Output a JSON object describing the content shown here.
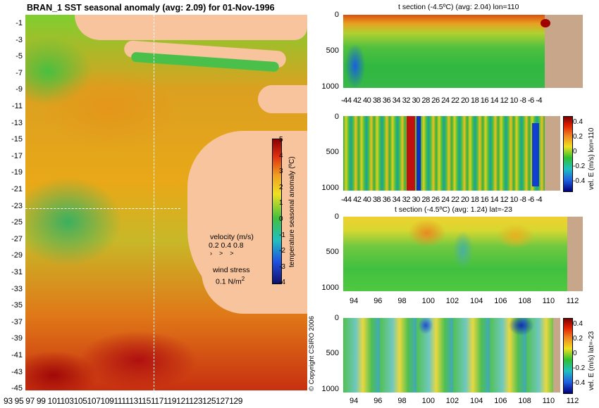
{
  "main_title": "BRAN_1 SST seasonal anomaly (avg: 2.09) for 01-Nov-1996",
  "map": {
    "lat_ticks": [
      "-1",
      "-3",
      "-5",
      "-7",
      "-9",
      "-11",
      "-13",
      "-15",
      "-17",
      "-19",
      "-21",
      "-23",
      "-25",
      "-27",
      "-29",
      "-31",
      "-33",
      "-35",
      "-37",
      "-39",
      "-41",
      "-43",
      "-45"
    ],
    "lon_ticks": [
      "93",
      "95",
      "97",
      "99",
      "101",
      "103",
      "105",
      "107",
      "109",
      "111",
      "113",
      "115",
      "117",
      "119",
      "121",
      "123",
      "125",
      "127",
      "129"
    ],
    "lon_tick_line": "93 95 97 99 101103105107109111113115117119121123125127129",
    "colorbar_ticks": [
      "5",
      "4",
      "3",
      "2",
      "1",
      "0",
      "-1",
      "-2",
      "-3",
      "-4"
    ],
    "colorbar_label": "temperature seasonal anomaly (ºC)",
    "velocity_title": "velocity (m/s)",
    "velocity_scale": "0.2 0.4 0.8",
    "wind_title": "wind stress",
    "wind_scale": "0.1 N/m",
    "wind_sup": "2",
    "copyright": "© Copyright CSIRO 2006",
    "dashed_lon": 110,
    "dashed_lat": -23
  },
  "panels": [
    {
      "id": "t-lon",
      "title": "t section (-4.5ºC) (avg: 2.04) lon=110",
      "y_ticks": [
        "0",
        "500",
        "1000"
      ],
      "x_label_line": "-44 42 40 38 36 34 32 30 28 26 24 22 20 18 16 14 12 10 -8  -6  -4",
      "has_colorbar": false
    },
    {
      "id": "v-lon",
      "title": "",
      "y_ticks": [
        "0",
        "500",
        "1000"
      ],
      "x_label_line": "-44 42 40 38 36 34 32 30 28 26 24 22 20 18 16 14 12 10 -8  -6  -4",
      "has_colorbar": true,
      "colorbar_ticks": [
        "0.4",
        "0.2",
        "0",
        "-0.2",
        "-0.4"
      ],
      "colorbar_label": "vel. E (m/s) lon=110"
    },
    {
      "id": "t-lat",
      "title": "t section (-4.5ºC) (avg: 1.24) lat=-23",
      "y_ticks": [
        "0",
        "500",
        "1000"
      ],
      "x_ticks": [
        "94",
        "96",
        "98",
        "100",
        "102",
        "104",
        "106",
        "108",
        "110",
        "112"
      ],
      "has_colorbar": false
    },
    {
      "id": "v-lat",
      "title": "",
      "y_ticks": [
        "0",
        "500",
        "1000"
      ],
      "x_ticks": [
        "94",
        "96",
        "98",
        "100",
        "102",
        "104",
        "106",
        "108",
        "110",
        "112"
      ],
      "has_colorbar": true,
      "colorbar_ticks": [
        "0.4",
        "0.2",
        "0",
        "-0.2",
        "-0.4"
      ],
      "colorbar_label": "vel. E (m/s) lat=-23"
    }
  ]
}
